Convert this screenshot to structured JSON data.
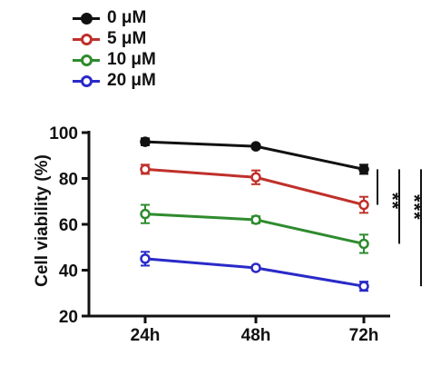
{
  "chart_data": {
    "type": "line",
    "categories": [
      "24h",
      "48h",
      "72h"
    ],
    "ylabel": "Cell viability (%)",
    "ylim": [
      20,
      100
    ],
    "yticks": [
      20,
      40,
      60,
      80,
      100
    ],
    "error_bars": true,
    "legend_position": "top-left",
    "series": [
      {
        "name": "0 μM",
        "color": "#111111",
        "values": [
          96,
          94,
          84
        ],
        "errors": [
          1.5,
          1.0,
          2.0
        ]
      },
      {
        "name": "5 μM",
        "color": "#c0302b",
        "values": [
          84,
          80.5,
          68.5
        ],
        "errors": [
          2.0,
          3.0,
          3.5
        ]
      },
      {
        "name": "10 μM",
        "color": "#2e8b2e",
        "values": [
          64.5,
          62,
          51.5
        ],
        "errors": [
          4.0,
          1.5,
          4.0
        ]
      },
      {
        "name": "20 μM",
        "color": "#2a2ac8",
        "values": [
          45,
          41,
          33
        ],
        "errors": [
          3.0,
          1.0,
          2.0
        ]
      }
    ],
    "significance": [
      "**",
      "***",
      "***"
    ]
  }
}
